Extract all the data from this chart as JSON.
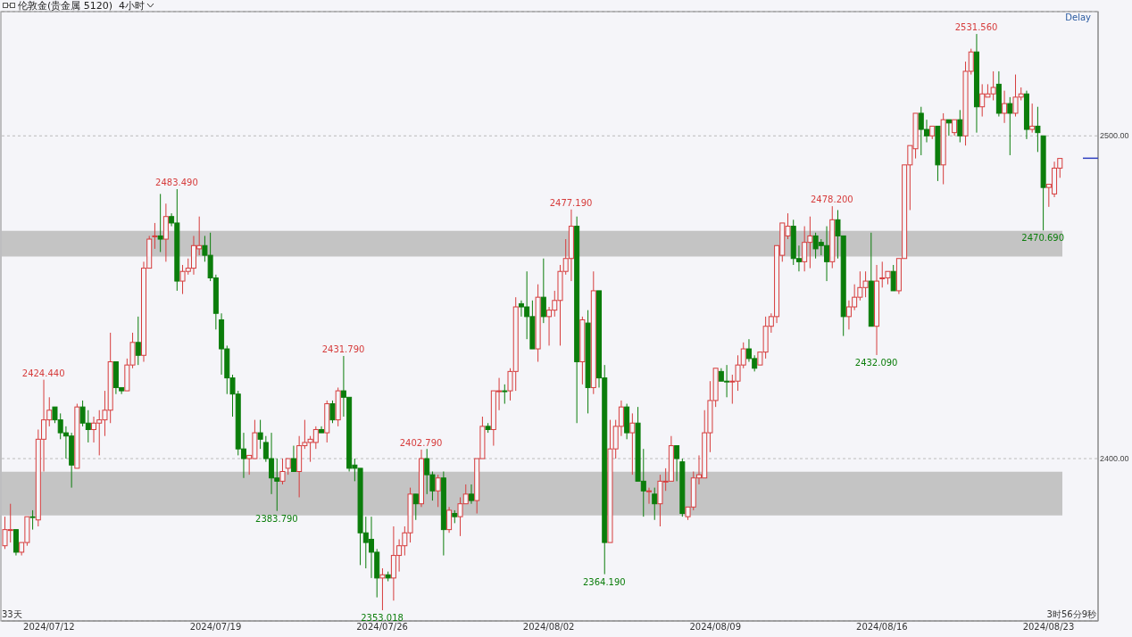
{
  "chart_data": {
    "type": "candlestick",
    "title": "伦敦金(贵金属 5120)  4小时",
    "categories": [
      null,
      null,
      null,
      null,
      null,
      null,
      null,
      null,
      "2024/07/12",
      null,
      null,
      null,
      null,
      null,
      null,
      null,
      null,
      null,
      null,
      null,
      null,
      null,
      null,
      null,
      null,
      null,
      null,
      null,
      null,
      null,
      null,
      null,
      null,
      null,
      null,
      null,
      null,
      null,
      "2024/07/19",
      null,
      null,
      null,
      null,
      null,
      null,
      null,
      null,
      null,
      null,
      null,
      null,
      null,
      null,
      null,
      null,
      null,
      null,
      null,
      null,
      null,
      null,
      null,
      null,
      null,
      null,
      null,
      null,
      null,
      "2024/07/26",
      null,
      null,
      null,
      null,
      null,
      null,
      null,
      null,
      null,
      null,
      null,
      null,
      null,
      null,
      null,
      null,
      null,
      null,
      null,
      null,
      null,
      null,
      null,
      null,
      null,
      null,
      null,
      null,
      null,
      "2024/08/02",
      null,
      null,
      null,
      null,
      null,
      null,
      null,
      null,
      null,
      null,
      null,
      null,
      null,
      null,
      null,
      null,
      null,
      null,
      null,
      null,
      null,
      null,
      null,
      null,
      null,
      null,
      null,
      null,
      null,
      "2024/08/09",
      null,
      null,
      null,
      null,
      null,
      null,
      null,
      null,
      null,
      null,
      null,
      null,
      null,
      null,
      null,
      null,
      null,
      null,
      null,
      null,
      null,
      null,
      null,
      null,
      null,
      null,
      null,
      null,
      null,
      "2024/08/16",
      null,
      null,
      null,
      null,
      null,
      null,
      null,
      null,
      null,
      null,
      null,
      null,
      null,
      null,
      null,
      null,
      null,
      null,
      null,
      null,
      null,
      null,
      null,
      null,
      null,
      null,
      null,
      null,
      null,
      "2024/08/23",
      null,
      null
    ],
    "ohlc": [
      [
        2373,
        2382,
        2372,
        2378
      ],
      [
        2378,
        2386,
        2374,
        2378
      ],
      [
        2378,
        2378,
        2370,
        2371
      ],
      [
        2371,
        2374,
        2370,
        2374
      ],
      [
        2374,
        2382,
        2373,
        2382
      ],
      [
        2382,
        2384,
        2378,
        2382
      ],
      [
        2381,
        2409,
        2379,
        2406
      ],
      [
        2406,
        2424.44,
        2396,
        2412
      ],
      [
        2412,
        2419,
        2410,
        2415
      ],
      [
        2416,
        2416,
        2411,
        2412
      ],
      [
        2412,
        2414,
        2406,
        2408
      ],
      [
        2408,
        2410,
        2400,
        2407
      ],
      [
        2407,
        2408,
        2391,
        2398
      ],
      [
        2397,
        2417,
        2397,
        2416
      ],
      [
        2416,
        2418,
        2410,
        2411
      ],
      [
        2411,
        2415,
        2405,
        2409
      ],
      [
        2409,
        2413,
        2405,
        2411
      ],
      [
        2411,
        2415,
        2401,
        2412
      ],
      [
        2412,
        2421,
        2407,
        2415
      ],
      [
        2415,
        2439,
        2411,
        2430
      ],
      [
        2430,
        2430,
        2420,
        2422
      ],
      [
        2422,
        2422,
        2420,
        2421
      ],
      [
        2421,
        2431,
        2421,
        2429
      ],
      [
        2429,
        2439,
        2428,
        2436
      ],
      [
        2436,
        2444,
        2429,
        2432
      ],
      [
        2432,
        2461,
        2430,
        2459
      ],
      [
        2459,
        2469,
        2459,
        2468
      ],
      [
        2469,
        2473,
        2465,
        2469
      ],
      [
        2469,
        2482,
        2464,
        2468
      ],
      [
        2468,
        2479,
        2461,
        2475
      ],
      [
        2475,
        2476,
        2472,
        2473
      ],
      [
        2473,
        2483.49,
        2452,
        2455
      ],
      [
        2455,
        2460,
        2451,
        2458
      ],
      [
        2458,
        2462,
        2457,
        2459
      ],
      [
        2459,
        2469,
        2457,
        2466
      ],
      [
        2465,
        2475,
        2463,
        2466
      ],
      [
        2466,
        2469,
        2461,
        2463
      ],
      [
        2463,
        2470,
        2455,
        2456
      ],
      [
        2456,
        2457,
        2440,
        2445
      ],
      [
        2443,
        2445,
        2426,
        2434
      ],
      [
        2434,
        2435,
        2420,
        2425
      ],
      [
        2425,
        2426,
        2413,
        2420
      ],
      [
        2420,
        2421,
        2401,
        2403
      ],
      [
        2403,
        2408,
        2394,
        2400
      ],
      [
        2400,
        2401,
        2395,
        2401
      ],
      [
        2400,
        2412,
        2400,
        2408
      ],
      [
        2408,
        2412,
        2403,
        2406
      ],
      [
        2405,
        2407,
        2399,
        2400
      ],
      [
        2400,
        2408,
        2389,
        2394
      ],
      [
        2394,
        2400,
        2383.79,
        2393
      ],
      [
        2393,
        2400,
        2392,
        2396
      ],
      [
        2397,
        2400,
        2395,
        2400
      ],
      [
        2400,
        2404,
        2396,
        2396
      ],
      [
        2396,
        2407,
        2388,
        2404
      ],
      [
        2404,
        2412,
        2403,
        2405
      ],
      [
        2405,
        2407,
        2399,
        2406
      ],
      [
        2405,
        2410,
        2403,
        2409
      ],
      [
        2409,
        2410,
        2408,
        2408
      ],
      [
        2408,
        2418,
        2405,
        2417
      ],
      [
        2417,
        2418,
        2411,
        2412
      ],
      [
        2412,
        2422,
        2410,
        2421
      ],
      [
        2421,
        2431.79,
        2413,
        2419
      ],
      [
        2419,
        2419,
        2396,
        2397
      ],
      [
        2398,
        2400,
        2393,
        2397
      ],
      [
        2397,
        2397,
        2367,
        2377
      ],
      [
        2377,
        2382,
        2366,
        2374
      ],
      [
        2375,
        2382,
        2363,
        2371
      ],
      [
        2371,
        2372,
        2357,
        2363
      ],
      [
        2363,
        2366,
        2353.018,
        2364
      ],
      [
        2364,
        2365,
        2362,
        2363
      ],
      [
        2363,
        2379,
        2356,
        2370
      ],
      [
        2370,
        2375,
        2365,
        2373
      ],
      [
        2373,
        2379,
        2370,
        2377
      ],
      [
        2377,
        2391,
        2374,
        2389
      ],
      [
        2389,
        2389,
        2381,
        2386
      ],
      [
        2386,
        2402.79,
        2385,
        2400
      ],
      [
        2400,
        2403,
        2389,
        2395
      ],
      [
        2395,
        2396,
        2387,
        2390
      ],
      [
        2390,
        2395,
        2385,
        2394
      ],
      [
        2394,
        2396,
        2370,
        2378
      ],
      [
        2378,
        2385,
        2377,
        2384
      ],
      [
        2383,
        2384,
        2380,
        2382
      ],
      [
        2382,
        2388,
        2376,
        2386
      ],
      [
        2386,
        2392,
        2386,
        2389
      ],
      [
        2389,
        2392,
        2386,
        2387
      ],
      [
        2387,
        2400,
        2383,
        2400
      ],
      [
        2400,
        2413,
        2400,
        2410
      ],
      [
        2410,
        2411,
        2408,
        2409
      ],
      [
        2409,
        2421,
        2404,
        2421
      ],
      [
        2421,
        2425,
        2415,
        2421
      ],
      [
        2421,
        2423,
        2417,
        2421
      ],
      [
        2421,
        2428,
        2418,
        2427
      ],
      [
        2427,
        2450,
        2421,
        2447
      ],
      [
        2448,
        2449,
        2444,
        2447
      ],
      [
        2447,
        2458,
        2437,
        2444
      ],
      [
        2444,
        2449,
        2434,
        2434
      ],
      [
        2434,
        2454,
        2430,
        2450
      ],
      [
        2450,
        2462,
        2442,
        2444
      ],
      [
        2444,
        2447,
        2435,
        2446
      ],
      [
        2446,
        2452,
        2444,
        2449
      ],
      [
        2449,
        2460,
        2435,
        2458
      ],
      [
        2458,
        2468,
        2457,
        2462
      ],
      [
        2462,
        2477.19,
        2455,
        2472
      ],
      [
        2472,
        2475,
        2411,
        2430
      ],
      [
        2430,
        2444,
        2423,
        2443
      ],
      [
        2442,
        2446,
        2414,
        2422
      ],
      [
        2422,
        2458,
        2420,
        2452
      ],
      [
        2452,
        2452,
        2422,
        2425
      ],
      [
        2425,
        2429,
        2364.19,
        2374
      ],
      [
        2374,
        2412,
        2374,
        2403
      ],
      [
        2403,
        2412,
        2400,
        2410
      ],
      [
        2410,
        2418,
        2407,
        2416
      ],
      [
        2416,
        2417,
        2406,
        2408
      ],
      [
        2408,
        2414,
        2395,
        2411
      ],
      [
        2411,
        2416,
        2393,
        2393
      ],
      [
        2393,
        2403,
        2382,
        2390
      ],
      [
        2390,
        2391,
        2386,
        2390
      ],
      [
        2389,
        2391,
        2381,
        2386
      ],
      [
        2386,
        2395,
        2379,
        2393
      ],
      [
        2393,
        2397,
        2390,
        2393
      ],
      [
        2393,
        2407,
        2393,
        2404
      ],
      [
        2404,
        2404,
        2393,
        2400
      ],
      [
        2399,
        2400,
        2382,
        2383
      ],
      [
        2382,
        2385,
        2381,
        2385
      ],
      [
        2385,
        2396,
        2384,
        2394
      ],
      [
        2394,
        2401,
        2392,
        2395
      ],
      [
        2394,
        2415,
        2394,
        2408
      ],
      [
        2408,
        2424,
        2402,
        2418
      ],
      [
        2418,
        2428,
        2416,
        2428
      ],
      [
        2427,
        2428,
        2424,
        2424
      ],
      [
        2424,
        2429,
        2419,
        2424
      ],
      [
        2424,
        2426,
        2417,
        2424
      ],
      [
        2424,
        2432,
        2421,
        2429
      ],
      [
        2429,
        2436,
        2428,
        2434
      ],
      [
        2434,
        2437,
        2430,
        2431
      ],
      [
        2431,
        2432,
        2427,
        2428
      ],
      [
        2429,
        2433,
        2429,
        2433
      ],
      [
        2433,
        2444,
        2431,
        2441
      ],
      [
        2441,
        2445,
        2439,
        2444
      ],
      [
        2444,
        2466,
        2442,
        2466
      ],
      [
        2463,
        2473,
        2461,
        2473
      ],
      [
        2469,
        2476,
        2468,
        2472
      ],
      [
        2472,
        2474,
        2460,
        2462
      ],
      [
        2462,
        2466,
        2458,
        2461
      ],
      [
        2461,
        2472,
        2458,
        2467
      ],
      [
        2467,
        2475,
        2459,
        2469
      ],
      [
        2469,
        2470,
        2462,
        2465
      ],
      [
        2467,
        2468,
        2463,
        2466
      ],
      [
        2466,
        2472,
        2455,
        2461
      ],
      [
        2461,
        2478.2,
        2459,
        2474
      ],
      [
        2474,
        2477,
        2462,
        2469
      ],
      [
        2469,
        2469,
        2438,
        2444
      ],
      [
        2444,
        2449,
        2440,
        2447
      ],
      [
        2447,
        2454,
        2446,
        2450
      ],
      [
        2450,
        2458,
        2449,
        2453
      ],
      [
        2453,
        2458,
        2450,
        2455
      ],
      [
        2455,
        2470,
        2441,
        2441
      ],
      [
        2441,
        2460,
        2432.09,
        2455
      ],
      [
        2456,
        2461,
        2453,
        2456
      ],
      [
        2456,
        2458,
        2454,
        2458
      ],
      [
        2458,
        2460,
        2452,
        2452
      ],
      [
        2452,
        2462,
        2451,
        2462
      ],
      [
        2462,
        2491,
        2462,
        2491
      ],
      [
        2491,
        2497,
        2477,
        2497
      ],
      [
        2496,
        2507,
        2493,
        2507
      ],
      [
        2507,
        2509,
        2494,
        2502
      ],
      [
        2502,
        2505,
        2498,
        2500
      ],
      [
        2500,
        2503,
        2499,
        2503
      ],
      [
        2503,
        2503,
        2486,
        2491
      ],
      [
        2491,
        2507,
        2485,
        2505
      ],
      [
        2505,
        2505,
        2500,
        2504
      ],
      [
        2501,
        2505,
        2500,
        2505
      ],
      [
        2505,
        2508,
        2498,
        2500
      ],
      [
        2500,
        2523,
        2497,
        2520
      ],
      [
        2520,
        2527,
        2519,
        2526
      ],
      [
        2526,
        2531.56,
        2501,
        2509
      ],
      [
        2509,
        2516,
        2506,
        2513
      ],
      [
        2512,
        2516,
        2512,
        2513
      ],
      [
        2513,
        2520,
        2511,
        2515
      ],
      [
        2516,
        2520,
        2506,
        2507
      ],
      [
        2507,
        2514,
        2504,
        2510
      ],
      [
        2510,
        2512,
        2494,
        2507
      ],
      [
        2507,
        2519,
        2506,
        2512
      ],
      [
        2512,
        2515,
        2511,
        2513
      ],
      [
        2513,
        2514,
        2499,
        2502
      ],
      [
        2502,
        2510,
        2501,
        2503
      ],
      [
        2503,
        2509,
        2495,
        2501
      ],
      [
        2500,
        2500,
        2470.69,
        2484
      ],
      [
        2484,
        2485,
        2478,
        2485
      ],
      [
        2482,
        2492,
        2481,
        2490
      ],
      [
        2490,
        2493,
        2487,
        2493
      ]
    ],
    "colors": [
      "#d63c3c",
      "#d63c3c",
      "#0b7d0b",
      "#d63c3c",
      "#d63c3c",
      "#0b7d0b",
      "#d63c3c",
      "#d63c3c",
      "#d63c3c",
      "#0b7d0b",
      "#0b7d0b",
      "#0b7d0b",
      "#0b7d0b",
      "#d63c3c",
      "#0b7d0b",
      "#0b7d0b",
      "#d63c3c",
      "#d63c3c",
      "#d63c3c",
      "#d63c3c",
      "#0b7d0b",
      "#0b7d0b",
      "#d63c3c",
      "#d63c3c",
      "#0b7d0b",
      "#d63c3c",
      "#d63c3c",
      "#d63c3c",
      "#0b7d0b",
      "#d63c3c",
      "#0b7d0b",
      "#0b7d0b",
      "#d63c3c",
      "#d63c3c",
      "#d63c3c",
      "#d63c3c",
      "#0b7d0b",
      "#0b7d0b",
      "#0b7d0b",
      "#0b7d0b",
      "#0b7d0b",
      "#0b7d0b",
      "#0b7d0b",
      "#0b7d0b",
      "#d63c3c",
      "#d63c3c",
      "#0b7d0b",
      "#0b7d0b",
      "#0b7d0b",
      "#0b7d0b",
      "#d63c3c",
      "#d63c3c",
      "#0b7d0b",
      "#d63c3c",
      "#d63c3c",
      "#d63c3c",
      "#d63c3c",
      "#0b7d0b",
      "#d63c3c",
      "#0b7d0b",
      "#d63c3c",
      "#0b7d0b",
      "#0b7d0b",
      "#0b7d0b",
      "#0b7d0b",
      "#0b7d0b",
      "#0b7d0b",
      "#0b7d0b",
      "#d63c3c",
      "#0b7d0b",
      "#d63c3c",
      "#d63c3c",
      "#d63c3c",
      "#d63c3c",
      "#0b7d0b",
      "#d63c3c",
      "#0b7d0b",
      "#0b7d0b",
      "#d63c3c",
      "#0b7d0b",
      "#d63c3c",
      "#0b7d0b",
      "#d63c3c",
      "#d63c3c",
      "#0b7d0b",
      "#d63c3c",
      "#d63c3c",
      "#0b7d0b",
      "#d63c3c",
      "#d63c3c",
      "#0b7d0b",
      "#d63c3c",
      "#d63c3c",
      "#0b7d0b",
      "#0b7d0b",
      "#0b7d0b",
      "#d63c3c",
      "#0b7d0b",
      "#d63c3c",
      "#d63c3c",
      "#d63c3c",
      "#d63c3c",
      "#d63c3c",
      "#0b7d0b",
      "#d63c3c",
      "#0b7d0b",
      "#d63c3c",
      "#0b7d0b",
      "#0b7d0b",
      "#d63c3c",
      "#d63c3c",
      "#d63c3c",
      "#0b7d0b",
      "#d63c3c",
      "#0b7d0b",
      "#0b7d0b",
      "#d63c3c",
      "#0b7d0b",
      "#d63c3c",
      "#d63c3c",
      "#d63c3c",
      "#0b7d0b",
      "#0b7d0b",
      "#d63c3c",
      "#d63c3c",
      "#d63c3c",
      "#d63c3c",
      "#d63c3c",
      "#d63c3c",
      "#0b7d0b",
      "#0b7d0b",
      "#d63c3c",
      "#d63c3c",
      "#d63c3c",
      "#0b7d0b",
      "#0b7d0b",
      "#d63c3c",
      "#d63c3c",
      "#d63c3c",
      "#d63c3c",
      "#d63c3c",
      "#d63c3c",
      "#0b7d0b",
      "#0b7d0b",
      "#d63c3c",
      "#d63c3c",
      "#0b7d0b",
      "#0b7d0b",
      "#0b7d0b",
      "#d63c3c",
      "#0b7d0b",
      "#0b7d0b",
      "#d63c3c",
      "#d63c3c",
      "#d63c3c",
      "#d63c3c",
      "#0b7d0b",
      "#d63c3c",
      "#d63c3c",
      "#d63c3c",
      "#0b7d0b",
      "#d63c3c",
      "#d63c3c",
      "#d63c3c",
      "#d63c3c",
      "#0b7d0b",
      "#0b7d0b",
      "#d63c3c",
      "#0b7d0b",
      "#d63c3c",
      "#0b7d0b",
      "#d63c3c",
      "#0b7d0b",
      "#d63c3c",
      "#d63c3c",
      "#0b7d0b",
      "#d63c3c",
      "#d63c3c",
      "#d63c3c",
      "#0b7d0b",
      "#d63c3c",
      "#0b7d0b",
      "#d63c3c",
      "#d63c3c",
      "#0b7d0b",
      "#d63c3c",
      "#0b7d0b",
      "#0b7d0b",
      "#d63c3c",
      "#d63c3c",
      "#d63c3c"
    ],
    "ylim": [
      2349.7,
      2538.5
    ],
    "yticks": [
      {
        "value": 2400,
        "label": "2400.00"
      },
      {
        "value": 2500,
        "label": "2500.00"
      }
    ],
    "grid": "y",
    "bands": [
      {
        "axis": "y",
        "from": 2462.6,
        "to": 2470.6,
        "color": "#c4c4c4"
      },
      {
        "axis": "y",
        "from": 2382.4,
        "to": 2395.9,
        "color": "#c4c4c4"
      }
    ],
    "annotations": [
      "Delay",
      "33天",
      "3时56分9秒",
      {
        "text": "2424.440",
        "y": 2424.44
      },
      {
        "text": "2483.490",
        "y": 2483.49
      },
      {
        "text": "2383.790",
        "y": 2383.79
      },
      {
        "text": "2431.790",
        "y": 2431.79
      },
      {
        "text": "2353.018",
        "y": 2353.018
      },
      {
        "text": "2402.790",
        "y": 2402.79
      },
      {
        "text": "2477.190",
        "y": 2477.19
      },
      {
        "text": "2364.190",
        "y": 2364.19
      },
      {
        "text": "2478.200",
        "y": 2478.2
      },
      {
        "text": "2432.090",
        "y": 2432.09
      },
      {
        "text": "2531.560",
        "y": 2531.56
      },
      {
        "text": "2470.690",
        "y": 2470.69
      }
    ]
  }
}
